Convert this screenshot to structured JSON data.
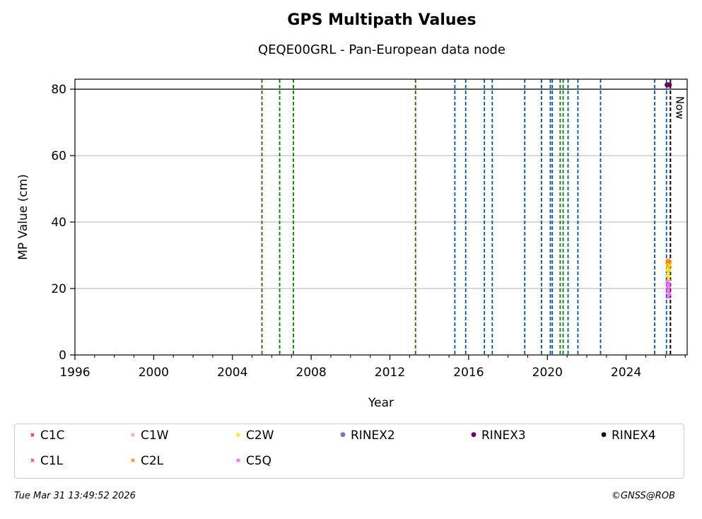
{
  "header": {
    "title": "GPS Multipath Values",
    "subtitle": "QEQE00GRL - Pan-European data node"
  },
  "footer": {
    "timestamp": "Tue Mar 31 13:49:52 2026",
    "credit": "©GNSS@ROB"
  },
  "chart_data": {
    "type": "scatter",
    "title": "GPS Multipath Values",
    "subtitle": "QEQE00GRL - Pan-European data node",
    "xlabel": "Year",
    "ylabel": "MP Value (cm)",
    "xlim": [
      1996,
      2027.1
    ],
    "ylim": [
      0,
      83
    ],
    "x_ticks": [
      1996,
      2000,
      2004,
      2008,
      2012,
      2016,
      2020,
      2024
    ],
    "y_ticks": [
      0,
      20,
      40,
      60,
      80
    ],
    "grid": "horizontal",
    "reference_line": 80,
    "now_label": "Now",
    "now_x": 2026.25,
    "green_event_lines": [
      2005.5,
      2006.4,
      2007.1,
      2013.3,
      2020.65,
      2020.8
    ],
    "blue_event_lines": [
      2015.3,
      2015.85,
      2016.8,
      2017.2,
      2018.85,
      2019.7,
      2020.15,
      2020.25,
      2021.05,
      2021.55,
      2022.7,
      2025.45,
      2026.05
    ],
    "red_event_lines": [
      2005.5,
      2013.3
    ],
    "series": [
      {
        "name": "C1C",
        "marker": "x",
        "color": "#e8332a",
        "x": [],
        "y": []
      },
      {
        "name": "C1L",
        "marker": "x",
        "color": "#f0544a",
        "x": [],
        "y": []
      },
      {
        "name": "C1W",
        "marker": "x",
        "color": "#ff9aa8",
        "x": [],
        "y": []
      },
      {
        "name": "C2L",
        "marker": "x",
        "color": "#ff8c00",
        "x": [
          2026.1,
          2026.12,
          2026.14,
          2026.16,
          2026.18,
          2026.2
        ],
        "y": [
          28,
          27,
          28.5,
          26.5,
          27.5,
          28
        ]
      },
      {
        "name": "C2W",
        "marker": "x",
        "color": "#ffe000",
        "x": [
          2026.1,
          2026.12,
          2026.14,
          2026.16,
          2026.18,
          2026.2
        ],
        "y": [
          26,
          24,
          25,
          23,
          27,
          25.5
        ]
      },
      {
        "name": "C5Q",
        "marker": "x",
        "color": "#ff55ff",
        "x": [
          2026.1,
          2026.12,
          2026.14,
          2026.16,
          2026.18,
          2026.2,
          2026.12,
          2026.16
        ],
        "y": [
          22,
          19,
          20,
          17.5,
          21,
          18.5,
          21.5,
          20
        ]
      },
      {
        "name": "RINEX2",
        "marker": "o",
        "color": "#7b78b8",
        "x": [],
        "y": []
      },
      {
        "name": "RINEX3",
        "marker": "o",
        "color": "#6a0060",
        "x": [
          2026.08,
          2026.12,
          2026.16,
          2026.2
        ],
        "y": [
          81.3,
          81.3,
          81.3,
          81.3
        ]
      },
      {
        "name": "RINEX4",
        "marker": "o",
        "color": "#1a0a1a",
        "x": [],
        "y": []
      }
    ],
    "legend": {
      "placement": "bottom",
      "entries": [
        {
          "label": "C1C",
          "marker": "x",
          "color": "#e8332a"
        },
        {
          "label": "C1W",
          "marker": "x",
          "color": "#ff9aa8"
        },
        {
          "label": "C2W",
          "marker": "x",
          "color": "#ffe000"
        },
        {
          "label": "RINEX2",
          "marker": "o",
          "color": "#7b78b8"
        },
        {
          "label": "RINEX3",
          "marker": "o",
          "color": "#6a0060"
        },
        {
          "label": "RINEX4",
          "marker": "o",
          "color": "#1a0a1a"
        },
        {
          "label": "C1L",
          "marker": "x",
          "color": "#f0544a"
        },
        {
          "label": "C2L",
          "marker": "x",
          "color": "#ff8c00"
        },
        {
          "label": "C5Q",
          "marker": "x",
          "color": "#ff55ff"
        }
      ]
    },
    "colors": {
      "green_line": "#008000",
      "blue_line": "#0055aa",
      "red_line": "#ff0000",
      "grid": "#b0b0b0",
      "axis": "#000000"
    }
  }
}
